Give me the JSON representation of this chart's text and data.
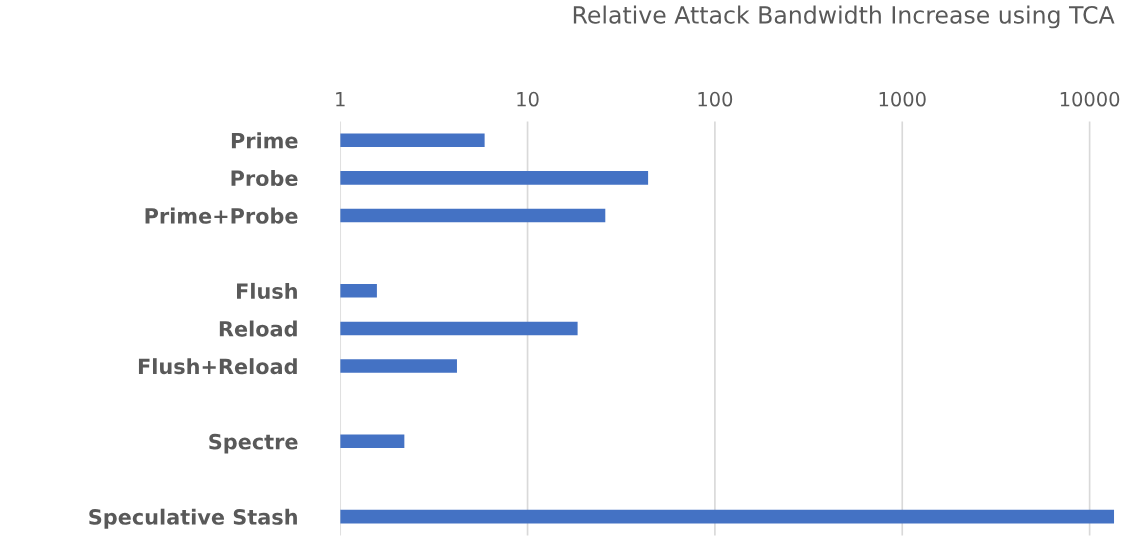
{
  "chart_data": {
    "type": "bar",
    "orientation": "horizontal",
    "title": "Relative Attack Bandwidth Increase using TCA",
    "categories": [
      "Prime",
      "Probe",
      "Prime+Probe",
      null,
      "Flush",
      "Reload",
      "Flush+Reload",
      null,
      "Spectre",
      null,
      "Speculative Stash"
    ],
    "values": [
      5.9,
      44,
      26,
      null,
      1.57,
      18.5,
      4.2,
      null,
      2.2,
      null,
      13500
    ],
    "color": "#4472c4",
    "log": "x",
    "xlim": [
      1,
      14000
    ],
    "xticks": [
      1,
      10,
      100,
      1000,
      10000
    ],
    "grid": "x"
  }
}
